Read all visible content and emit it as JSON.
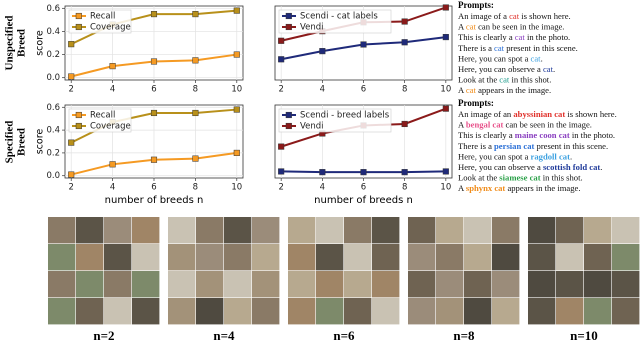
{
  "row_labels": [
    [
      "Unspecified",
      "Breed"
    ],
    [
      "Specified",
      "Breed"
    ]
  ],
  "chart_data": [
    {
      "type": "line",
      "ylabel": "score",
      "x": [
        2,
        4,
        6,
        8,
        10
      ],
      "xlim": [
        1.7,
        10.3
      ],
      "xticks": [
        2,
        4,
        6,
        8,
        10
      ],
      "ylim": [
        -0.02,
        0.62
      ],
      "yticks": [
        {
          "value": 0,
          "label": "0.0"
        },
        0.2,
        0.4,
        0.6
      ],
      "grid": true,
      "legend": "upper-left",
      "series": [
        {
          "name": "Recall",
          "color": "#f59a23",
          "values": [
            0.01,
            0.1,
            0.14,
            0.15,
            0.2
          ]
        },
        {
          "name": "Coverage",
          "color": "#b8901a",
          "values": [
            0.29,
            0.46,
            0.55,
            0.55,
            0.58
          ]
        }
      ]
    },
    {
      "type": "line",
      "x": [
        2,
        4,
        6,
        8,
        10
      ],
      "xlim": [
        1.7,
        10.3
      ],
      "xticks": [
        2,
        4,
        6,
        8,
        10
      ],
      "ylim": [
        0,
        1
      ],
      "grid": true,
      "legend": "upper-left",
      "series": [
        {
          "name": "Scendi - cat labels",
          "color": "#1f2a7a",
          "values": [
            0.28,
            0.39,
            0.48,
            0.51,
            0.58
          ]
        },
        {
          "name": "Vendi",
          "color": "#8b1a1a",
          "values": [
            0.53,
            0.66,
            0.78,
            0.79,
            0.98
          ]
        }
      ]
    },
    {
      "type": "line",
      "ylabel": "score",
      "xlabel": "number of breeds n",
      "x": [
        2,
        4,
        6,
        8,
        10
      ],
      "xlim": [
        1.7,
        10.3
      ],
      "xticks": [
        2,
        4,
        6,
        8,
        10
      ],
      "ylim": [
        -0.02,
        0.62
      ],
      "yticks": [
        {
          "value": 0,
          "label": "0.0"
        },
        0.2,
        0.4,
        0.6
      ],
      "grid": true,
      "legend": "upper-left",
      "series": [
        {
          "name": "Recall",
          "color": "#f59a23",
          "values": [
            0.01,
            0.1,
            0.14,
            0.15,
            0.2
          ]
        },
        {
          "name": "Coverage",
          "color": "#b8901a",
          "values": [
            0.29,
            0.47,
            0.55,
            0.55,
            0.58
          ]
        }
      ]
    },
    {
      "type": "line",
      "xlabel": "number of breeds n",
      "x": [
        2,
        4,
        6,
        8,
        10
      ],
      "xlim": [
        1.7,
        10.3
      ],
      "xticks": [
        2,
        4,
        6,
        8,
        10
      ],
      "ylim": [
        0,
        1
      ],
      "grid": true,
      "legend": "upper-left",
      "series": [
        {
          "name": "Scendi - breed labels",
          "color": "#1f2a7a",
          "values": [
            0.09,
            0.08,
            0.08,
            0.08,
            0.09
          ]
        },
        {
          "name": "Vendi",
          "color": "#8b1a1a",
          "values": [
            0.43,
            0.61,
            0.72,
            0.74,
            0.95
          ]
        }
      ]
    }
  ],
  "prompts": [
    {
      "title": "Prompts:",
      "colors": [
        "#e0302a",
        "#f08c1a",
        "#8a3fc0",
        "#2a6fd6",
        "#3aa0e0",
        "#1f3a9a",
        "#1a9a8a",
        "#f08c1a"
      ],
      "lines": [
        [
          "An image of a ",
          "cat",
          " is shown here."
        ],
        [
          "A ",
          "cat",
          " can be seen in the image."
        ],
        [
          "This is clearly a ",
          "cat",
          " in the photo."
        ],
        [
          "There is a ",
          "cat",
          " present in this scene."
        ],
        [
          "Here, you can spot a ",
          "cat",
          "."
        ],
        [
          "Here, you can observe a ",
          "cat",
          "."
        ],
        [
          "Look at the ",
          "cat",
          " in this shot."
        ],
        [
          "A ",
          "cat",
          " appears in the image."
        ]
      ]
    },
    {
      "title": "Prompts:",
      "colors": [
        "#e0302a",
        "#e8508a",
        "#8a3fc0",
        "#2a6fd6",
        "#3aa0e0",
        "#1f3a9a",
        "#2aa048",
        "#f08c1a"
      ],
      "lines": [
        [
          "An image of an ",
          "abyssinian cat",
          " is shown here."
        ],
        [
          "A ",
          "bengal cat",
          " can be seen in the image."
        ],
        [
          "This is clearly a ",
          "maine coon cat",
          " in the photo."
        ],
        [
          "There is a ",
          "persian cat",
          " present in this scene."
        ],
        [
          "Here, you can spot a ",
          "ragdoll cat",
          "."
        ],
        [
          "Here, you can observe a ",
          "scottish fold cat",
          "."
        ],
        [
          "Look at the ",
          "siamese cat",
          " in this shot."
        ],
        [
          "A ",
          "sphynx cat",
          " appears in the image."
        ]
      ]
    }
  ],
  "image_captions": [
    "n=2",
    "n=4",
    "n=6",
    "n=8",
    "n=10"
  ]
}
